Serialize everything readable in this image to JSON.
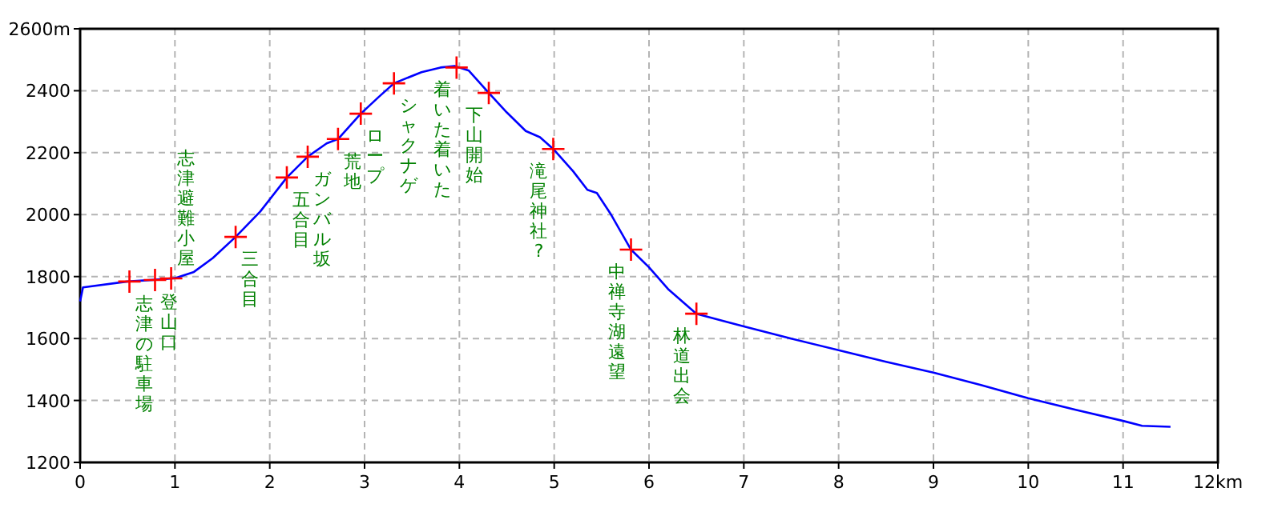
{
  "chart_data": {
    "type": "line",
    "xlim": [
      0,
      12
    ],
    "ylim": [
      1200,
      2600
    ],
    "xticks": [
      0,
      1,
      2,
      3,
      4,
      5,
      6,
      7,
      8,
      9,
      10,
      11,
      {
        "value": 12,
        "label": "12km"
      }
    ],
    "yticks": [
      1200,
      1400,
      1600,
      1800,
      2000,
      2200,
      2400,
      {
        "value": 2600,
        "label": "2600m"
      }
    ],
    "grid": true,
    "series": [
      {
        "color": "#0000ff",
        "x": [
          0,
          0.03,
          0.5,
          0.8,
          1.0,
          1.2,
          1.4,
          1.64,
          1.9,
          2.18,
          2.4,
          2.6,
          2.72,
          2.96,
          3.15,
          3.31,
          3.6,
          3.8,
          3.95,
          4.1,
          4.31,
          4.5,
          4.7,
          4.85,
          4.99,
          5.2,
          5.35,
          5.45,
          5.6,
          5.81,
          6.0,
          6.2,
          6.5,
          6.8,
          7.0,
          7.5,
          8.0,
          8.5,
          9.0,
          9.5,
          10.0,
          10.5,
          11.0,
          11.2,
          11.5
        ],
        "values": [
          1720,
          1765,
          1784,
          1790,
          1795,
          1815,
          1860,
          1928,
          2010,
          2120,
          2187,
          2230,
          2244,
          2326,
          2380,
          2424,
          2460,
          2475,
          2480,
          2465,
          2393,
          2330,
          2270,
          2250,
          2212,
          2140,
          2080,
          2070,
          2000,
          1887,
          1830,
          1760,
          1680,
          1655,
          1639,
          1600,
          1562,
          1525,
          1490,
          1450,
          1407,
          1370,
          1334,
          1318,
          1315
        ]
      },
      {
        "type": "scatter",
        "color": "#ff0000",
        "marker": "cross",
        "x": [
          0.52,
          0.79,
          0.96,
          1.64,
          2.18,
          2.4,
          2.72,
          2.96,
          3.31,
          3.97,
          4.31,
          4.99,
          5.81,
          6.5
        ],
        "values": [
          1784,
          1789,
          1794,
          1928,
          2120,
          2187,
          2244,
          2326,
          2424,
          2475,
          2393,
          2212,
          1887,
          1680
        ]
      }
    ],
    "annotations": [
      {
        "text": "志津の駐車場",
        "x": 0.52,
        "y": 1784
      },
      {
        "text": "登山口",
        "x": 0.79,
        "y": 1789
      },
      {
        "text": "志津避難小屋",
        "x": 0.96,
        "y": 1794
      },
      {
        "text": "三合目",
        "x": 1.64,
        "y": 1928
      },
      {
        "text": "五合目",
        "x": 2.18,
        "y": 2120
      },
      {
        "text": "ガンバル坂",
        "x": 2.4,
        "y": 2187
      },
      {
        "text": "荒地",
        "x": 2.72,
        "y": 2244
      },
      {
        "text": "ロープ",
        "x": 2.96,
        "y": 2326
      },
      {
        "text": "シャクナゲ",
        "x": 3.31,
        "y": 2424
      },
      {
        "text": "着いた着いた",
        "x": 3.97,
        "y": 2475
      },
      {
        "text": "下山開始",
        "x": 4.31,
        "y": 2393
      },
      {
        "text": "滝尾神社?",
        "x": 4.99,
        "y": 2212
      },
      {
        "text": "中禅寺湖遠望",
        "x": 5.81,
        "y": 1887
      },
      {
        "text": "林道出会",
        "x": 6.5,
        "y": 1680
      }
    ]
  }
}
